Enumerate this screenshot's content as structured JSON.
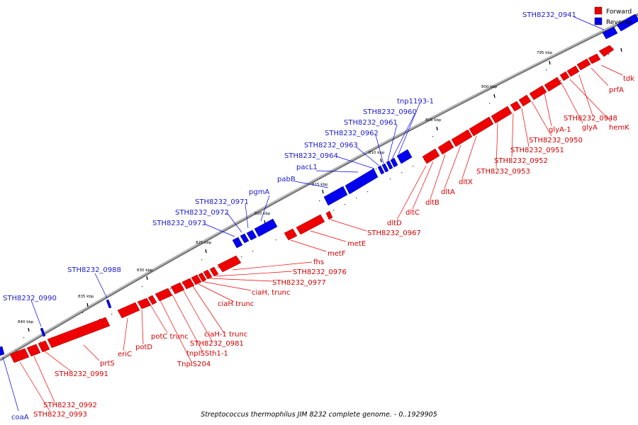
{
  "caption": "Streptococcus thermophilus JIM 8232 complete genome. - 0..1929905",
  "legend": [
    {
      "label": "Forward",
      "color": "#ee0000"
    },
    {
      "label": "Reverse",
      "color": "#0000ee"
    }
  ],
  "colors": {
    "forward": "#ee0000",
    "reverse": "#0000ee",
    "backbone": "#888888"
  },
  "ticks": [
    "795 kbp",
    "800 kbp",
    "805 kbp",
    "810 kbp",
    "815 kbp",
    "820 kbp",
    "825 kbp",
    "830 kbp",
    "835 kbp",
    "840 kbp"
  ],
  "reverse_labels": [
    "STH8232_0941",
    "tnp1193-1",
    "STH8232_0960",
    "STH8232_0961",
    "STH8232_0962",
    "STH8232_0963",
    "STH8232_0964",
    "pacL1",
    "pabB",
    "pgmA",
    "STH8232_0971",
    "STH8232_0972",
    "STH8232_0973",
    "STH8232_0988",
    "STH8232_0990",
    "coaA"
  ],
  "forward_labels": [
    "tdk",
    "prfA",
    "STH8232_0948",
    "hemK",
    "glyA",
    "glyA-1",
    "STH8232_0950",
    "STH8232_0951",
    "STH8232_0952",
    "STH8232_0953",
    "dltX",
    "dltA",
    "dltB",
    "dltC",
    "dltD",
    "STH8232_0967",
    "metE",
    "metF",
    "fhs",
    "STH8232_0976",
    "STH8232_0977",
    "ciaH, trunc",
    "ciaH trunc",
    "ciaH-1 trunc",
    "STH8232_0981",
    "tnpISSth1-1",
    "TnpIS204",
    "potC trunc",
    "potD",
    "eriC",
    "prtS",
    "STH8232_0991",
    "STH8232_0992",
    "STH8232_0993"
  ]
}
